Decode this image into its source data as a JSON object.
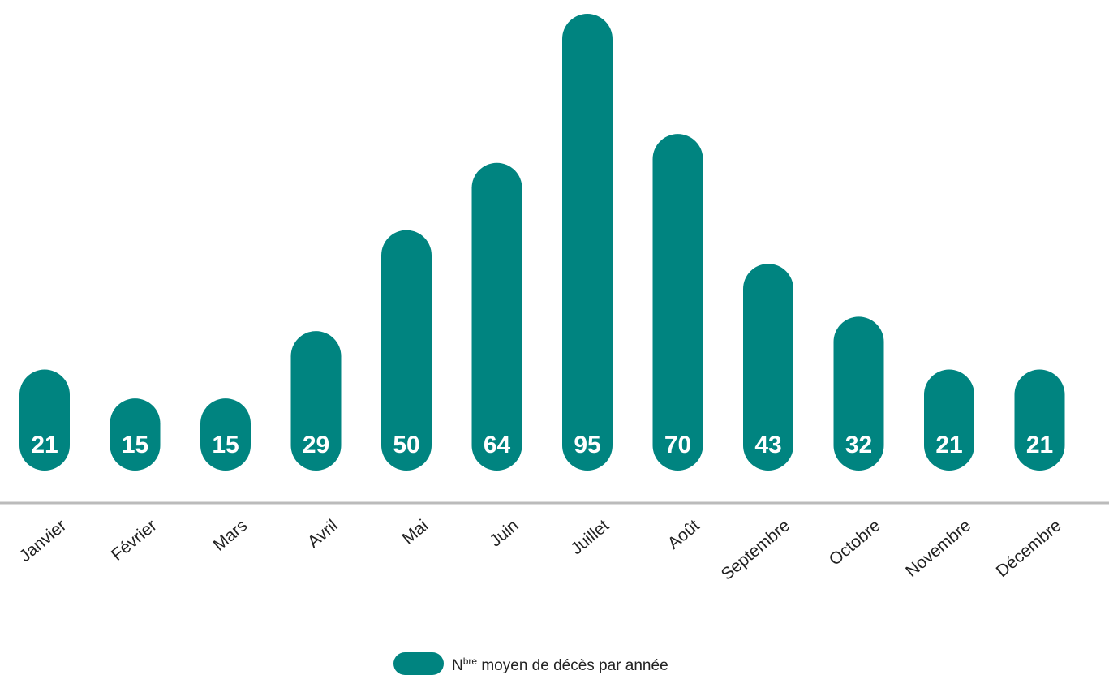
{
  "chart_data": {
    "type": "bar",
    "categories": [
      "Janvier",
      "Février",
      "Mars",
      "Avril",
      "Mai",
      "Juin",
      "Juillet",
      "Août",
      "Septembre",
      "Octobre",
      "Novembre",
      "Décembre"
    ],
    "series": [
      {
        "name": "Nbre moyen de décès par année",
        "color": "#008480",
        "values": [
          21,
          15,
          15,
          29,
          50,
          64,
          95,
          70,
          43,
          32,
          21,
          21
        ]
      }
    ]
  }
}
